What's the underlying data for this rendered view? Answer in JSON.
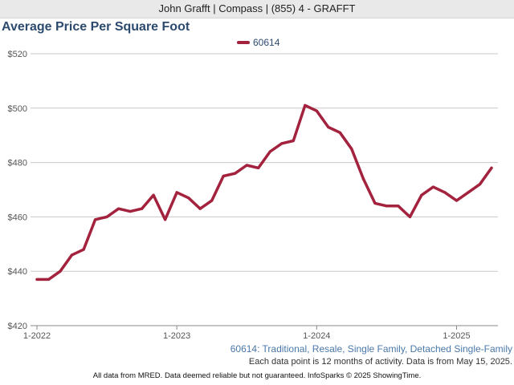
{
  "header": {
    "agent_line": "John Grafft | Compass | (855) 4 - GRAFFT"
  },
  "chart_data": {
    "type": "line",
    "title": "Average Price Per Square Foot",
    "ylabel": "",
    "xlabel": "",
    "x": [
      "1-2022",
      "2-2022",
      "3-2022",
      "4-2022",
      "5-2022",
      "6-2022",
      "7-2022",
      "8-2022",
      "9-2022",
      "10-2022",
      "11-2022",
      "12-2022",
      "1-2023",
      "2-2023",
      "3-2023",
      "4-2023",
      "5-2023",
      "6-2023",
      "7-2023",
      "8-2023",
      "9-2023",
      "10-2023",
      "11-2023",
      "12-2023",
      "1-2024",
      "2-2024",
      "3-2024",
      "4-2024",
      "5-2024",
      "6-2024",
      "7-2024",
      "8-2024",
      "9-2024",
      "10-2024",
      "11-2024",
      "12-2024",
      "1-2025",
      "2-2025",
      "3-2025",
      "4-2025"
    ],
    "series": [
      {
        "name": "60614",
        "values": [
          437,
          437,
          440,
          446,
          448,
          459,
          460,
          463,
          462,
          463,
          468,
          459,
          469,
          467,
          463,
          466,
          475,
          476,
          479,
          478,
          484,
          487,
          488,
          501,
          499,
          493,
          491,
          485,
          474,
          465,
          464,
          464,
          460,
          468,
          471,
          469,
          466,
          469,
          472,
          478
        ]
      }
    ],
    "ylim": [
      420,
      520
    ],
    "yticks": [
      420,
      440,
      460,
      480,
      500,
      520
    ],
    "ytick_labels": [
      "$420",
      "$440",
      "$460",
      "$480",
      "$500",
      "$520"
    ],
    "xtick_labels": [
      "1-2022",
      "1-2023",
      "1-2024",
      "1-2025"
    ],
    "xtick_indices": [
      0,
      12,
      24,
      36
    ],
    "grid": true,
    "legend": "top-center",
    "colors": {
      "series": "#a3223d",
      "title": "#2c4a6e",
      "subtitle": "#4a78a8"
    }
  },
  "subtitle": "60614: Traditional, Resale, Single Family, Detached Single-Family",
  "note": "Each data point is 12 months of activity. Data is from May 15, 2025.",
  "footer": "All data from MRED. Data deemed reliable but not guaranteed. InfoSparks © 2025 ShowingTime."
}
